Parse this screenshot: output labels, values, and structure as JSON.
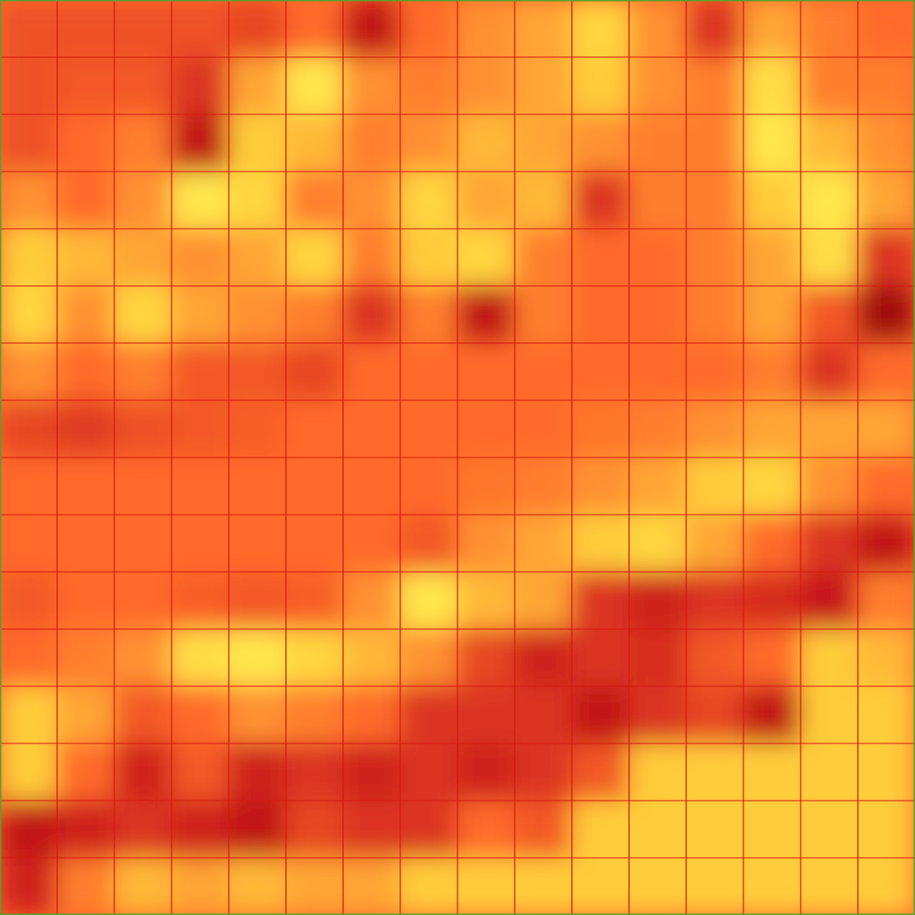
{
  "chart_data": {
    "type": "heatmap",
    "grid": true,
    "tick_labels": false,
    "xlim": [
      0,
      16
    ],
    "ylim": [
      0,
      16
    ],
    "xticks": [
      0,
      1,
      2,
      3,
      4,
      5,
      6,
      7,
      8,
      9,
      10,
      11,
      12,
      13,
      14,
      15,
      16
    ],
    "yticks": [
      0,
      1,
      2,
      3,
      4,
      5,
      6,
      7,
      8,
      9,
      10,
      11,
      12,
      13,
      14,
      15,
      16
    ],
    "zlim": [
      0,
      100
    ],
    "values": [
      [
        62,
        62,
        62,
        62,
        65,
        55,
        80,
        55,
        45,
        40,
        25,
        45,
        70,
        40,
        50,
        55
      ],
      [
        62,
        60,
        60,
        70,
        40,
        15,
        45,
        50,
        45,
        40,
        30,
        45,
        50,
        20,
        50,
        50
      ],
      [
        62,
        55,
        50,
        80,
        30,
        35,
        50,
        45,
        35,
        40,
        45,
        50,
        50,
        15,
        35,
        45
      ],
      [
        45,
        55,
        45,
        15,
        25,
        50,
        45,
        25,
        40,
        35,
        70,
        50,
        50,
        30,
        15,
        40
      ],
      [
        30,
        35,
        40,
        45,
        40,
        25,
        50,
        30,
        25,
        50,
        55,
        55,
        50,
        40,
        20,
        70
      ],
      [
        25,
        45,
        25,
        40,
        45,
        50,
        70,
        50,
        80,
        50,
        55,
        55,
        50,
        40,
        60,
        90
      ],
      [
        45,
        55,
        50,
        60,
        60,
        65,
        55,
        55,
        55,
        55,
        55,
        55,
        55,
        50,
        70,
        55
      ],
      [
        65,
        68,
        62,
        60,
        58,
        55,
        55,
        55,
        55,
        55,
        52,
        50,
        45,
        40,
        40,
        40
      ],
      [
        55,
        55,
        55,
        55,
        55,
        55,
        55,
        55,
        52,
        50,
        45,
        40,
        30,
        25,
        45,
        55
      ],
      [
        55,
        55,
        55,
        55,
        55,
        55,
        55,
        60,
        45,
        40,
        30,
        25,
        40,
        55,
        70,
        80
      ],
      [
        60,
        55,
        55,
        58,
        60,
        58,
        45,
        15,
        35,
        40,
        70,
        75,
        70,
        72,
        78,
        50
      ],
      [
        55,
        50,
        45,
        20,
        15,
        25,
        35,
        45,
        65,
        75,
        70,
        72,
        60,
        55,
        30,
        35
      ],
      [
        30,
        40,
        60,
        55,
        45,
        50,
        55,
        70,
        70,
        70,
        80,
        70,
        65,
        80,
        30,
        30
      ],
      [
        30,
        55,
        75,
        60,
        75,
        70,
        75,
        70,
        75,
        70,
        60,
        30,
        30,
        30,
        30,
        30
      ],
      [
        80,
        75,
        70,
        75,
        80,
        65,
        70,
        70,
        55,
        60,
        30,
        30,
        30,
        30,
        30,
        30
      ],
      [
        75,
        50,
        35,
        40,
        35,
        40,
        40,
        30,
        30,
        30,
        30,
        30,
        30,
        30,
        30,
        30
      ]
    ]
  }
}
